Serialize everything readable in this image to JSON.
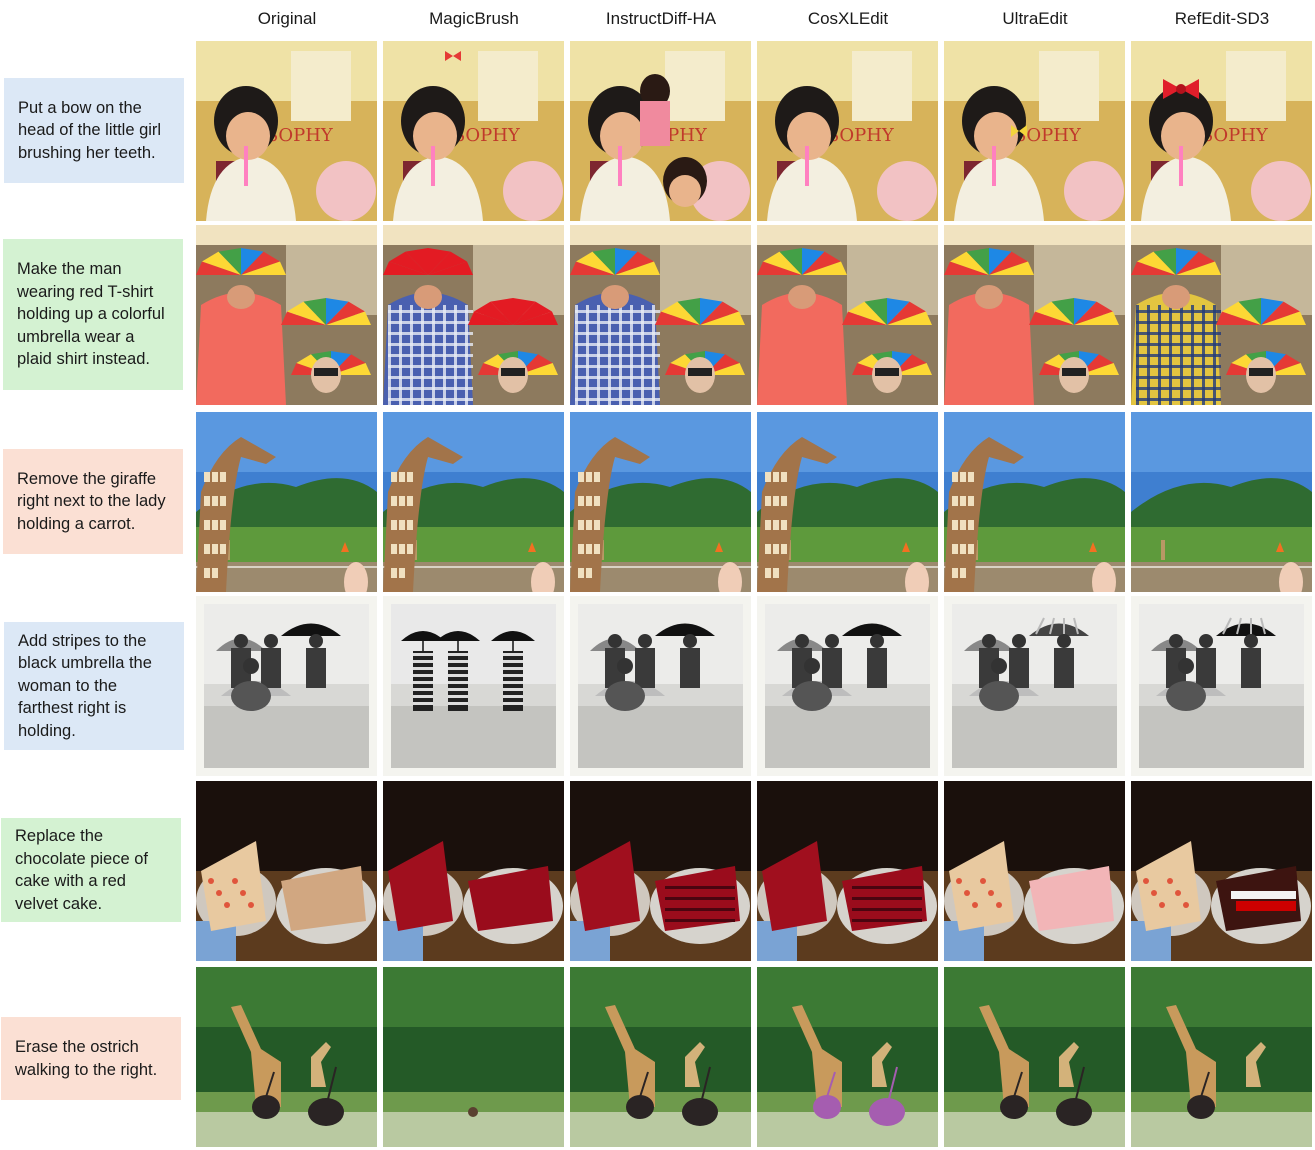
{
  "columns": [
    "Original",
    "MagicBrush",
    "InstructDiff-HA",
    "CosXLEdit",
    "UltraEdit",
    "RefEdit-SD3"
  ],
  "rows": [
    {
      "prompt": "Put a bow on the head of the little girl brushing her teeth.",
      "theme": "blue",
      "scene": "girl"
    },
    {
      "prompt": "Make the man wearing red T-shirt holding up a colorful umbrella wear a plaid shirt instead.",
      "theme": "green",
      "scene": "umbrella"
    },
    {
      "prompt": "Remove the giraffe right next to the lady holding a carrot.",
      "theme": "peach",
      "scene": "giraffe"
    },
    {
      "prompt": "Add stripes to the black umbrella the woman to the farthest right is holding.",
      "theme": "blue",
      "scene": "beach"
    },
    {
      "prompt": "Replace the chocolate piece of cake with a red velvet cake.",
      "theme": "green",
      "scene": "cake"
    },
    {
      "prompt": "Erase the ostrich walking to the right.",
      "theme": "peach",
      "scene": "ostrich"
    }
  ],
  "colors": {
    "blue": "#dce8f6",
    "green": "#d4f2d2",
    "peach": "#fbe0d4"
  }
}
